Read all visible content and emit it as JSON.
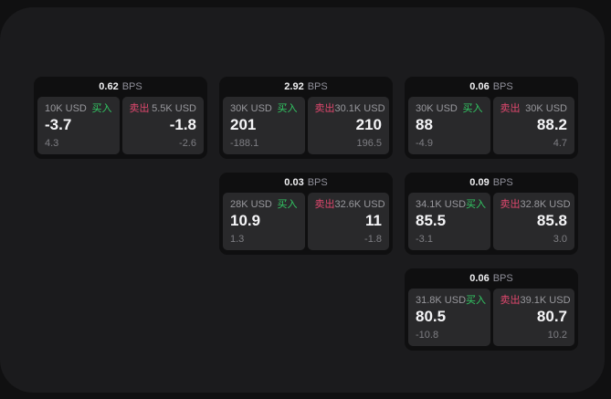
{
  "labels": {
    "buy": "买入",
    "sell": "卖出",
    "bps_unit": "BPS"
  },
  "colors": {
    "buy_accent": "#32c964",
    "sell_accent": "#e0486e",
    "backdrop": "#101011",
    "surface": "#1b1b1d",
    "card": "#0f0f10",
    "panel": "#29292b"
  },
  "cards": [
    {
      "row": 1,
      "col": 1,
      "bps": "0.62",
      "buy": {
        "size": "10K USD",
        "price": "-3.7",
        "delta": "4.3"
      },
      "sell": {
        "size": "5.5K USD",
        "price": "-1.8",
        "delta": "-2.6"
      }
    },
    {
      "row": 1,
      "col": 2,
      "bps": "2.92",
      "buy": {
        "size": "30K USD",
        "price": "201",
        "delta": "-188.1"
      },
      "sell": {
        "size": "30.1K USD",
        "price": "210",
        "delta": "196.5"
      }
    },
    {
      "row": 1,
      "col": 3,
      "bps": "0.06",
      "buy": {
        "size": "30K USD",
        "price": "88",
        "delta": "-4.9"
      },
      "sell": {
        "size": "30K USD",
        "price": "88.2",
        "delta": "4.7"
      }
    },
    {
      "row": 2,
      "col": 2,
      "bps": "0.03",
      "buy": {
        "size": "28K USD",
        "price": "10.9",
        "delta": "1.3"
      },
      "sell": {
        "size": "32.6K USD",
        "price": "11",
        "delta": "-1.8"
      }
    },
    {
      "row": 2,
      "col": 3,
      "bps": "0.09",
      "buy": {
        "size": "34.1K USD",
        "price": "85.5",
        "delta": "-3.1"
      },
      "sell": {
        "size": "32.8K USD",
        "price": "85.8",
        "delta": "3.0"
      }
    },
    {
      "row": 3,
      "col": 3,
      "bps": "0.06",
      "buy": {
        "size": "31.8K USD",
        "price": "80.5",
        "delta": "-10.8"
      },
      "sell": {
        "size": "39.1K USD",
        "price": "80.7",
        "delta": "10.2"
      }
    }
  ]
}
